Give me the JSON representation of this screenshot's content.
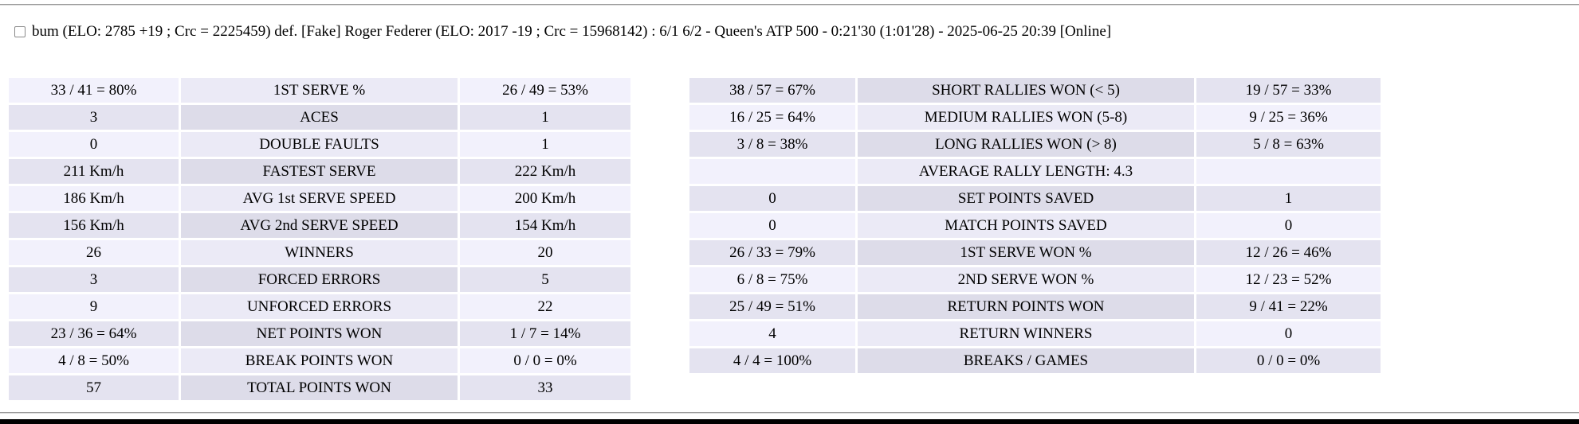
{
  "header": {
    "match_summary": "bum (ELO: 2785 +19 ; Crc = 2225459) def. [Fake] Roger Federer (ELO: 2017 -19 ; Crc = 15968142) : 6/1 6/2 - Queen's ATP 500 - 0:21'30 (1:01'28) - 2025-06-25 20:39 [Online]",
    "checkbox_checked": false
  },
  "tables": {
    "serve": {
      "rows": [
        [
          "33 / 41 = 80%",
          "1ST SERVE %",
          "26 / 49 = 53%"
        ],
        [
          "3",
          "ACES",
          "1"
        ],
        [
          "0",
          "DOUBLE FAULTS",
          "1"
        ],
        [
          "211 Km/h",
          "FASTEST SERVE",
          "222 Km/h"
        ],
        [
          "186 Km/h",
          "AVG 1st SERVE SPEED",
          "200 Km/h"
        ],
        [
          "156 Km/h",
          "AVG 2nd SERVE SPEED",
          "154 Km/h"
        ],
        [
          "26",
          "WINNERS",
          "20"
        ],
        [
          "3",
          "FORCED ERRORS",
          "5"
        ],
        [
          "9",
          "UNFORCED ERRORS",
          "22"
        ],
        [
          "23 / 36 = 64%",
          "NET POINTS WON",
          "1 / 7 = 14%"
        ],
        [
          "4 / 8 = 50%",
          "BREAK POINTS WON",
          "0 / 0 = 0%"
        ],
        [
          "57",
          "TOTAL POINTS WON",
          "33"
        ]
      ]
    },
    "rally": {
      "rows": [
        [
          "38 / 57 = 67%",
          "SHORT RALLIES WON (< 5)",
          "19 / 57 = 33%"
        ],
        [
          "16 / 25 = 64%",
          "MEDIUM RALLIES WON (5-8)",
          "9 / 25 = 36%"
        ],
        [
          "3 / 8 = 38%",
          "LONG RALLIES WON (> 8)",
          "5 / 8 = 63%"
        ],
        [
          "",
          "AVERAGE RALLY LENGTH: 4.3",
          ""
        ],
        [
          "0",
          "SET POINTS SAVED",
          "1"
        ],
        [
          "0",
          "MATCH POINTS SAVED",
          "0"
        ],
        [
          "26 / 33 = 79%",
          "1ST SERVE WON %",
          "12 / 26 = 46%"
        ],
        [
          "6 / 8 = 75%",
          "2ND SERVE WON %",
          "12 / 23 = 52%"
        ],
        [
          "25 / 49 = 51%",
          "RETURN POINTS WON",
          "9 / 41 = 22%"
        ],
        [
          "4",
          "RETURN WINNERS",
          "0"
        ],
        [
          "4 / 4 = 100%",
          "BREAKS / GAMES",
          "0 / 0 = 0%"
        ]
      ]
    }
  },
  "colors": {
    "row_light_value": "#f2f1fc",
    "row_light_label": "#ebeaf6",
    "row_dark_value": "#e4e3f0",
    "row_dark_label": "#dddce9",
    "divider": "#9a9a9a",
    "bottom_bar": "#000000"
  }
}
